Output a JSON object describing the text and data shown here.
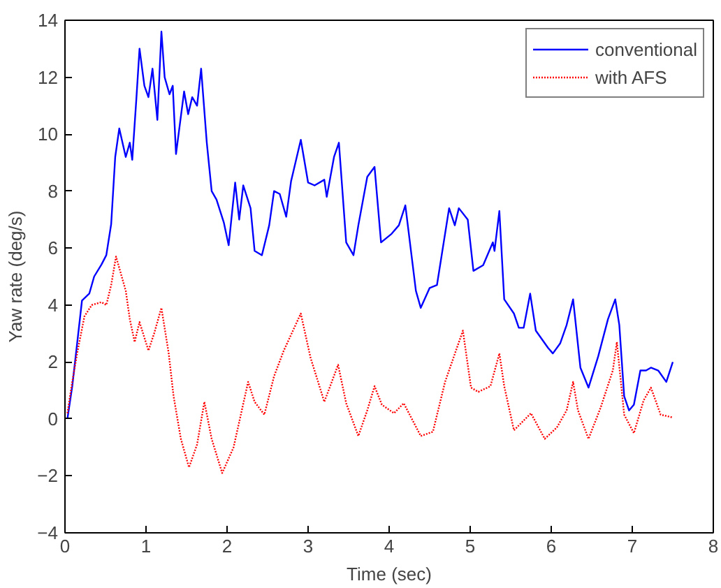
{
  "chart_data": {
    "type": "line",
    "xlabel": "Time (sec)",
    "ylabel": "Yaw rate (deg/s)",
    "xlim": [
      0,
      8
    ],
    "ylim": [
      -4,
      14
    ],
    "xticks": [
      0,
      1,
      2,
      3,
      4,
      5,
      6,
      7,
      8
    ],
    "yticks": [
      -4,
      -2,
      0,
      2,
      4,
      6,
      8,
      10,
      12,
      14
    ],
    "grid": false,
    "legend": "top right",
    "marker": "none",
    "series": [
      {
        "name": "conventional",
        "color": "#0000ff",
        "line_style": "solid",
        "x": [
          0.03,
          0.09,
          0.15,
          0.21,
          0.3,
          0.36,
          0.45,
          0.51,
          0.57,
          0.62,
          0.67,
          0.75,
          0.8,
          0.83,
          0.88,
          0.92,
          0.98,
          1.03,
          1.08,
          1.14,
          1.19,
          1.23,
          1.29,
          1.33,
          1.37,
          1.47,
          1.52,
          1.57,
          1.63,
          1.68,
          1.75,
          1.81,
          1.87,
          1.96,
          2.02,
          2.1,
          2.15,
          2.2,
          2.29,
          2.34,
          2.43,
          2.52,
          2.58,
          2.65,
          2.73,
          2.79,
          2.91,
          3.0,
          3.08,
          3.2,
          3.23,
          3.32,
          3.38,
          3.47,
          3.56,
          3.62,
          3.73,
          3.82,
          3.9,
          4.03,
          4.12,
          4.2,
          4.33,
          4.39,
          4.5,
          4.59,
          4.74,
          4.81,
          4.86,
          4.97,
          5.04,
          5.16,
          5.28,
          5.3,
          5.36,
          5.42,
          5.54,
          5.6,
          5.66,
          5.74,
          5.81,
          5.96,
          6.02,
          6.11,
          6.19,
          6.27,
          6.36,
          6.46,
          6.58,
          6.7,
          6.79,
          6.84,
          6.9,
          6.96,
          7.02,
          7.1,
          7.17,
          7.23,
          7.32,
          7.42,
          7.5
        ],
        "values": [
          0,
          1.15,
          2.65,
          4.16,
          4.4,
          5.0,
          5.42,
          5.75,
          6.84,
          9.2,
          10.2,
          9.2,
          9.7,
          9.1,
          11.2,
          13.0,
          11.7,
          11.3,
          12.3,
          10.5,
          13.6,
          12.0,
          11.4,
          11.7,
          9.3,
          11.5,
          10.7,
          11.3,
          11.0,
          12.3,
          9.7,
          8.0,
          7.7,
          6.9,
          6.1,
          8.3,
          7.0,
          8.2,
          7.4,
          5.9,
          5.75,
          6.8,
          8.0,
          7.9,
          7.1,
          8.35,
          9.8,
          8.3,
          8.2,
          8.4,
          7.8,
          9.2,
          9.7,
          6.2,
          5.75,
          6.8,
          8.5,
          8.85,
          6.2,
          6.5,
          6.8,
          7.5,
          4.5,
          3.9,
          4.6,
          4.7,
          7.4,
          6.8,
          7.4,
          7.0,
          5.2,
          5.4,
          6.2,
          5.9,
          7.3,
          4.2,
          3.7,
          3.2,
          3.2,
          4.4,
          3.1,
          2.5,
          2.3,
          2.65,
          3.3,
          4.2,
          1.8,
          1.1,
          2.2,
          3.5,
          4.2,
          3.3,
          0.8,
          0.3,
          0.5,
          1.7,
          1.7,
          1.8,
          1.7,
          1.3,
          2.0
        ]
      },
      {
        "name": "with AFS",
        "color": "#ff0000",
        "line_style": "dotted",
        "x": [
          0.03,
          0.09,
          0.15,
          0.24,
          0.33,
          0.45,
          0.51,
          0.57,
          0.63,
          0.75,
          0.8,
          0.86,
          0.92,
          1.03,
          1.1,
          1.19,
          1.28,
          1.34,
          1.43,
          1.53,
          1.63,
          1.72,
          1.81,
          1.94,
          2.08,
          2.17,
          2.26,
          2.34,
          2.46,
          2.58,
          2.7,
          2.91,
          3.03,
          3.2,
          3.37,
          3.47,
          3.62,
          3.73,
          3.82,
          3.91,
          4.06,
          4.18,
          4.39,
          4.54,
          4.69,
          4.91,
          5.01,
          5.1,
          5.25,
          5.36,
          5.42,
          5.54,
          5.75,
          5.92,
          6.07,
          6.19,
          6.27,
          6.33,
          6.46,
          6.61,
          6.76,
          6.81,
          6.9,
          7.02,
          7.14,
          7.23,
          7.35,
          7.5
        ],
        "values": [
          0.2,
          1.3,
          2.3,
          3.6,
          4.0,
          4.1,
          4.0,
          4.7,
          5.7,
          4.5,
          3.5,
          2.7,
          3.4,
          2.4,
          3.0,
          3.9,
          2.3,
          0.8,
          -0.7,
          -1.7,
          -0.9,
          0.6,
          -0.7,
          -1.9,
          -1.0,
          0.15,
          1.3,
          0.6,
          0.15,
          1.5,
          2.4,
          3.7,
          2.15,
          0.6,
          1.9,
          0.55,
          -0.6,
          0.3,
          1.15,
          0.5,
          0.2,
          0.55,
          -0.6,
          -0.45,
          1.3,
          3.1,
          1.1,
          0.95,
          1.15,
          2.3,
          1.15,
          -0.4,
          0.2,
          -0.7,
          -0.3,
          0.3,
          1.3,
          0.3,
          -0.7,
          0.4,
          1.7,
          2.7,
          0.15,
          -0.5,
          0.65,
          1.1,
          0.15,
          0.05
        ]
      }
    ]
  }
}
